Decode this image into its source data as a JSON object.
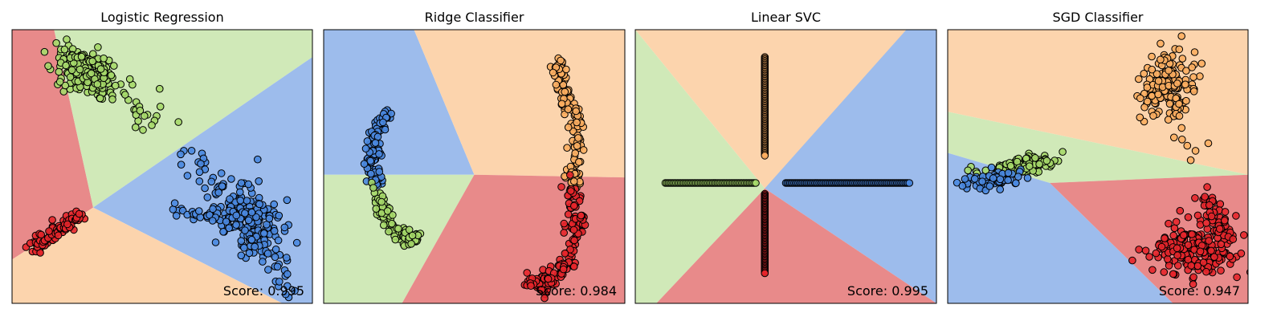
{
  "colors": {
    "red_region": "#e88a8a",
    "green_region": "#d0e9b8",
    "blue_region": "#9dbcec",
    "orange_region": "#fcd4ad",
    "red_point": "#e5262b",
    "green_point": "#a6d96a",
    "blue_point": "#4a88e0",
    "orange_point": "#fdae61",
    "edge": "#000000"
  },
  "chart_data": [
    {
      "type": "scatter",
      "title": "Logistic Regression",
      "score_label": "Score: 0.995",
      "xlabel": "",
      "ylabel": "",
      "grid": false,
      "regions": [
        {
          "class": "red",
          "polygon": [
            [
              0,
              0
            ],
            [
              0.14,
              0
            ],
            [
              0.27,
              0.65
            ],
            [
              0,
              0.84
            ]
          ]
        },
        {
          "class": "green",
          "polygon": [
            [
              0.14,
              0
            ],
            [
              1,
              0
            ],
            [
              1,
              0.1
            ],
            [
              0.27,
              0.65
            ]
          ]
        },
        {
          "class": "blue",
          "polygon": [
            [
              1,
              0.1
            ],
            [
              1,
              1
            ],
            [
              0.9,
              1
            ],
            [
              0.27,
              0.65
            ]
          ]
        },
        {
          "class": "orange",
          "polygon": [
            [
              0,
              0.84
            ],
            [
              0.27,
              0.65
            ],
            [
              0.9,
              1
            ],
            [
              0,
              1
            ]
          ]
        }
      ],
      "series": [
        {
          "class": "green",
          "clusters": [
            {
              "kind": "ellipse",
              "cx": 0.25,
              "cy": 0.16,
              "rx": 0.1,
              "ry": 0.07,
              "rot": 30,
              "n": 160
            },
            {
              "kind": "line",
              "from": [
                0.16,
                0.07
              ],
              "to": [
                0.5,
                0.35
              ],
              "spread": 0.03,
              "n": 50
            }
          ]
        },
        {
          "class": "blue",
          "clusters": [
            {
              "kind": "ellipse",
              "cx": 0.8,
              "cy": 0.7,
              "rx": 0.09,
              "ry": 0.14,
              "rot": -25,
              "n": 170
            },
            {
              "kind": "line",
              "from": [
                0.57,
                0.43
              ],
              "to": [
                0.93,
                0.93
              ],
              "spread": 0.03,
              "n": 60
            },
            {
              "kind": "line",
              "from": [
                0.55,
                0.67
              ],
              "to": [
                0.8,
                0.69
              ],
              "spread": 0.015,
              "n": 40
            }
          ]
        },
        {
          "class": "red",
          "clusters": [
            {
              "kind": "line",
              "from": [
                0.07,
                0.8
              ],
              "to": [
                0.22,
                0.68
              ],
              "spread": 0.012,
              "n": 90
            }
          ]
        }
      ]
    },
    {
      "type": "scatter",
      "title": "Ridge Classifier",
      "score_label": "Score: 0.984",
      "xlabel": "",
      "ylabel": "",
      "grid": false,
      "regions": [
        {
          "class": "blue",
          "polygon": [
            [
              0,
              0
            ],
            [
              0.3,
              0
            ],
            [
              0.5,
              0.53
            ],
            [
              0,
              0.53
            ]
          ]
        },
        {
          "class": "orange",
          "polygon": [
            [
              0.3,
              0
            ],
            [
              1,
              0
            ],
            [
              1,
              0.54
            ],
            [
              0.5,
              0.53
            ]
          ]
        },
        {
          "class": "green",
          "polygon": [
            [
              0,
              0.53
            ],
            [
              0.5,
              0.53
            ],
            [
              0.26,
              1
            ],
            [
              0,
              1
            ]
          ]
        },
        {
          "class": "red",
          "polygon": [
            [
              0.5,
              0.53
            ],
            [
              1,
              0.54
            ],
            [
              1,
              1
            ],
            [
              0.26,
              1
            ]
          ]
        }
      ],
      "series": [
        {
          "class": "blue",
          "clusters": [
            {
              "kind": "curve",
              "points": [
                [
                  0.21,
                  0.3
                ],
                [
                  0.17,
                  0.38
                ],
                [
                  0.16,
                  0.48
                ],
                [
                  0.17,
                  0.57
                ]
              ],
              "spread": 0.012,
              "n": 120
            }
          ]
        },
        {
          "class": "green",
          "clusters": [
            {
              "kind": "curve",
              "points": [
                [
                  0.17,
                  0.57
                ],
                [
                  0.2,
                  0.68
                ],
                [
                  0.26,
                  0.76
                ],
                [
                  0.3,
                  0.76
                ]
              ],
              "spread": 0.013,
              "n": 90
            }
          ]
        },
        {
          "class": "orange",
          "clusters": [
            {
              "kind": "curve",
              "points": [
                [
                  0.78,
                  0.11
                ],
                [
                  0.79,
                  0.22
                ],
                [
                  0.84,
                  0.33
                ],
                [
                  0.84,
                  0.47
                ],
                [
                  0.83,
                  0.58
                ]
              ],
              "spread": 0.013,
              "n": 140
            }
          ]
        },
        {
          "class": "red",
          "clusters": [
            {
              "kind": "curve",
              "points": [
                [
                  0.83,
                  0.58
                ],
                [
                  0.84,
                  0.7
                ],
                [
                  0.81,
                  0.85
                ],
                [
                  0.73,
                  0.94
                ],
                [
                  0.69,
                  0.92
                ]
              ],
              "spread": 0.015,
              "n": 160
            }
          ]
        }
      ]
    },
    {
      "type": "scatter",
      "title": "Linear SVC",
      "score_label": "Score: 0.995",
      "xlabel": "",
      "ylabel": "",
      "grid": false,
      "regions": [
        {
          "class": "orange",
          "polygon": [
            [
              0,
              0
            ],
            [
              1,
              0
            ],
            [
              0.43,
              0.58
            ],
            [
              0,
              0
            ]
          ]
        },
        {
          "class": "blue",
          "polygon": [
            [
              0.9,
              0
            ],
            [
              1,
              0
            ],
            [
              1,
              1
            ],
            [
              0.43,
              0.58
            ]
          ]
        },
        {
          "class": "green",
          "polygon": [
            [
              0,
              0
            ],
            [
              0.43,
              0.58
            ],
            [
              0.07,
              1
            ],
            [
              0,
              1
            ]
          ]
        },
        {
          "class": "red",
          "polygon": [
            [
              0.43,
              0.58
            ],
            [
              1,
              1
            ],
            [
              0.07,
              1
            ]
          ]
        }
      ],
      "series": [
        {
          "class": "orange",
          "clusters": [
            {
              "kind": "line",
              "from": [
                0.43,
                0.1
              ],
              "to": [
                0.43,
                0.46
              ],
              "spread": 0.0,
              "n": 80
            }
          ]
        },
        {
          "class": "green",
          "clusters": [
            {
              "kind": "line",
              "from": [
                0.1,
                0.56
              ],
              "to": [
                0.4,
                0.56
              ],
              "spread": 0.0,
              "n": 60
            }
          ]
        },
        {
          "class": "blue",
          "clusters": [
            {
              "kind": "line",
              "from": [
                0.5,
                0.56
              ],
              "to": [
                0.91,
                0.56
              ],
              "spread": 0.0,
              "n": 90
            }
          ]
        },
        {
          "class": "red",
          "clusters": [
            {
              "kind": "line",
              "from": [
                0.43,
                0.6
              ],
              "to": [
                0.43,
                0.89
              ],
              "spread": 0.0,
              "n": 70
            }
          ]
        }
      ]
    },
    {
      "type": "scatter",
      "title": "SGD Classifier",
      "score_label": "Score: 0.947",
      "xlabel": "",
      "ylabel": "",
      "grid": false,
      "regions": [
        {
          "class": "orange",
          "polygon": [
            [
              0,
              0
            ],
            [
              1,
              0
            ],
            [
              1,
              0.53
            ],
            [
              0,
              0.3
            ]
          ]
        },
        {
          "class": "green",
          "polygon": [
            [
              0,
              0.3
            ],
            [
              1,
              0.53
            ],
            [
              0.34,
              0.56
            ],
            [
              0,
              0.45
            ]
          ]
        },
        {
          "class": "blue",
          "polygon": [
            [
              0,
              0.45
            ],
            [
              0.34,
              0.56
            ],
            [
              0.75,
              1
            ],
            [
              0,
              1
            ]
          ]
        },
        {
          "class": "red",
          "polygon": [
            [
              0.34,
              0.56
            ],
            [
              1,
              0.53
            ],
            [
              1,
              1
            ],
            [
              0.75,
              1
            ]
          ]
        }
      ],
      "series": [
        {
          "class": "orange",
          "clusters": [
            {
              "kind": "ellipse",
              "cx": 0.73,
              "cy": 0.2,
              "rx": 0.08,
              "ry": 0.1,
              "rot": 20,
              "n": 150
            },
            {
              "kind": "line",
              "from": [
                0.72,
                0.12
              ],
              "to": [
                0.82,
                0.46
              ],
              "spread": 0.03,
              "n": 20
            }
          ]
        },
        {
          "class": "green",
          "clusters": [
            {
              "kind": "ellipse",
              "cx": 0.25,
              "cy": 0.5,
              "rx": 0.13,
              "ry": 0.03,
              "rot": -10,
              "n": 110
            }
          ]
        },
        {
          "class": "blue",
          "clusters": [
            {
              "kind": "ellipse",
              "cx": 0.15,
              "cy": 0.55,
              "rx": 0.1,
              "ry": 0.025,
              "rot": -10,
              "n": 80
            }
          ]
        },
        {
          "class": "red",
          "clusters": [
            {
              "kind": "ellipse",
              "cx": 0.83,
              "cy": 0.8,
              "rx": 0.13,
              "ry": 0.09,
              "rot": 0,
              "n": 200
            },
            {
              "kind": "line",
              "from": [
                0.86,
                0.6
              ],
              "to": [
                0.92,
                0.75
              ],
              "spread": 0.02,
              "n": 40
            }
          ]
        }
      ]
    }
  ]
}
